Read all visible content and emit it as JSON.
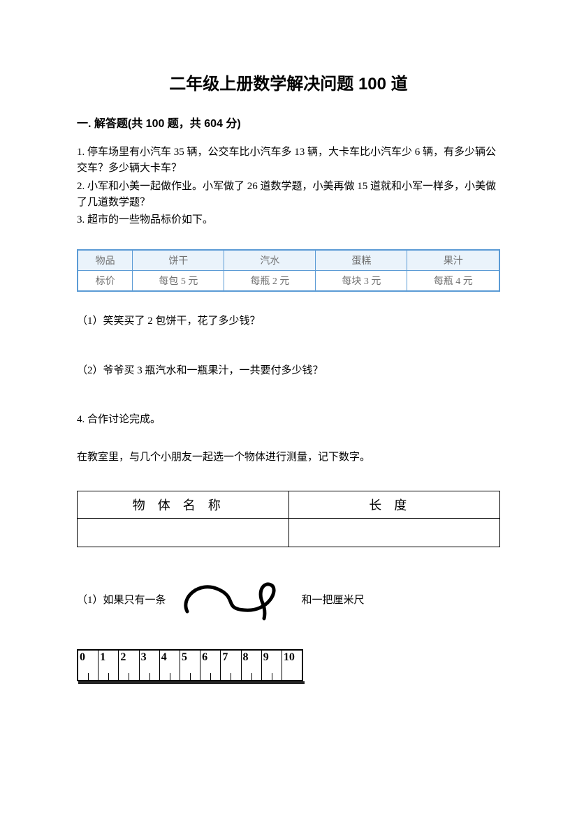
{
  "title": "二年级上册数学解决问题 100 道",
  "section_header": "一. 解答题(共 100 题，共 604 分)",
  "q1": "1. 停车场里有小汽车 35 辆，公交车比小汽车多 13 辆，大卡车比小汽车少 6 辆，有多少辆公交车？多少辆大卡车？",
  "q2": "2. 小军和小美一起做作业。小军做了 26 道数学题，小美再做 15 道就和小军一样多，小美做了几道数学题？",
  "q3": "3. 超市的一些物品标价如下。",
  "price_table": {
    "header": [
      "物品",
      "饼干",
      "汽水",
      "蛋糕",
      "果汁"
    ],
    "row": [
      "标价",
      "每包 5 元",
      "每瓶 2 元",
      "每块 3 元",
      "每瓶 4 元"
    ],
    "border_color": "#5b9bd5",
    "header_bg": "#eaf3fb",
    "text_color": "#707070"
  },
  "q3_1": "（1）笑笑买了 2 包饼干，花了多少钱？",
  "q3_2": "（2）爷爷买 3 瓶汽水和一瓶果汁，一共要付多少钱？",
  "q4": "4. 合作讨论完成。",
  "q4_intro": "在教室里，与几个小朋友一起选一个物体进行测量，记下数字。",
  "measure_table": {
    "headers": [
      "物体名称",
      "长度"
    ]
  },
  "q4_1_prefix": "（1）如果只有一条",
  "q4_1_suffix": "和一把厘米尺",
  "ruler": {
    "ticks": [
      "0",
      "1",
      "2",
      "3",
      "4",
      "5",
      "6",
      "7",
      "8",
      "9",
      "10"
    ]
  }
}
